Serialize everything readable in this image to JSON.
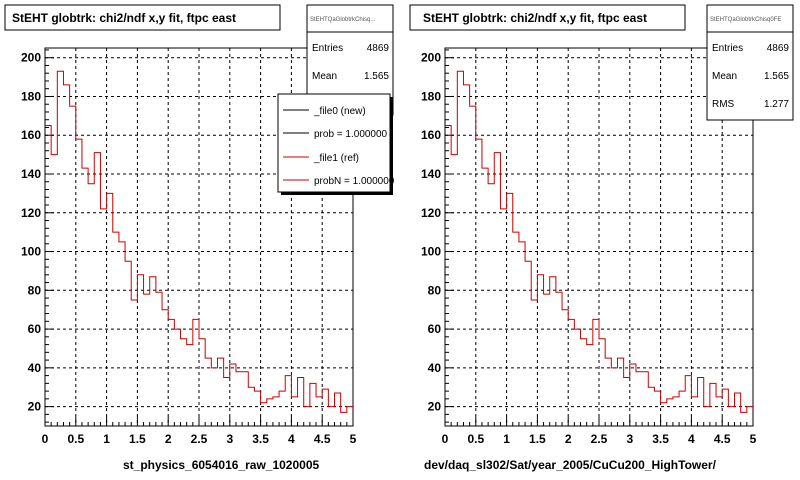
{
  "chart_data": [
    {
      "type": "histogram",
      "title": "StEHT globtrk: chi2/ndf x,y fit, ftpc east",
      "xlabel": "st_physics_6054016_raw_1020005",
      "xlim": [
        0,
        5
      ],
      "ylim": [
        10,
        205
      ],
      "x_ticks": [
        "0",
        "0.5",
        "1",
        "1.5",
        "2",
        "2.5",
        "3",
        "3.5",
        "4",
        "4.5",
        "5"
      ],
      "y_ticks": [
        "20",
        "40",
        "60",
        "80",
        "100",
        "120",
        "140",
        "160",
        "180",
        "200"
      ],
      "grid": true,
      "bin_width": 0.1,
      "series": [
        {
          "name": "_file1 (ref)",
          "color": "#cc0000",
          "values": [
            165,
            150,
            193,
            186,
            175,
            158,
            143,
            135,
            151,
            122,
            130,
            110,
            105,
            95,
            75,
            88,
            78,
            87,
            79,
            70,
            65,
            60,
            55,
            52,
            65,
            55,
            45,
            40,
            45,
            35,
            42,
            38,
            38,
            30,
            28,
            22,
            24,
            25,
            28,
            36,
            25,
            35,
            20,
            32,
            25,
            29,
            20,
            27,
            17,
            20
          ]
        }
      ],
      "stats": {
        "box_label": "StEHTQaGlobtrkChisq...",
        "entries_label": "Entries",
        "entries": "4869",
        "mean_label": "Mean",
        "mean": "1.565"
      },
      "legend": {
        "placement": "top-right",
        "entries": [
          {
            "label": "_file0 (new)",
            "color": "#000000"
          },
          {
            "label": "prob = 1.000000",
            "color": "#000000"
          },
          {
            "label": "_file1 (ref)",
            "color": "#cc0000"
          },
          {
            "label": "probN = 1.000000",
            "color": "#cc0000"
          }
        ]
      }
    },
    {
      "type": "histogram",
      "title": "StEHT globtrk: chi2/ndf x,y fit, ftpc east",
      "xlabel": "dev/daq_sl302/Sat/year_2005/CuCu200_HighTower/",
      "xlim": [
        0,
        5
      ],
      "ylim": [
        10,
        205
      ],
      "x_ticks": [
        "0",
        "0.5",
        "1",
        "1.5",
        "2",
        "2.5",
        "3",
        "3.5",
        "4",
        "4.5",
        "5"
      ],
      "y_ticks": [
        "20",
        "40",
        "60",
        "80",
        "100",
        "120",
        "140",
        "160",
        "180",
        "200"
      ],
      "grid": true,
      "bin_width": 0.1,
      "series": [
        {
          "name": "",
          "color": "#cc0000",
          "values": [
            165,
            150,
            193,
            186,
            175,
            158,
            143,
            135,
            151,
            122,
            130,
            110,
            105,
            95,
            75,
            88,
            78,
            87,
            79,
            70,
            65,
            60,
            55,
            52,
            65,
            55,
            45,
            40,
            45,
            35,
            42,
            38,
            38,
            30,
            28,
            22,
            24,
            25,
            28,
            36,
            25,
            35,
            20,
            32,
            25,
            29,
            20,
            27,
            17,
            20
          ]
        }
      ],
      "stats": {
        "box_label": "StEHTQaGlobtrkChisq0FE",
        "entries_label": "Entries",
        "entries": "4869",
        "mean_label": "Mean",
        "mean": "1.565",
        "rms_label": "RMS",
        "rms": "1.277"
      }
    }
  ]
}
